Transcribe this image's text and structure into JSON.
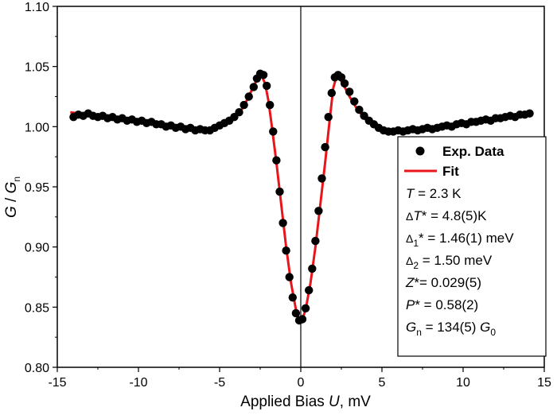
{
  "chart_data": {
    "type": "scatter",
    "xlabel": {
      "pre": "Applied Bias ",
      "var": "U",
      "post": ", mV"
    },
    "ylabel": {
      "g": "G",
      "slash": " / ",
      "gn": "G",
      "sub": "n"
    },
    "xlim": [
      -15,
      15
    ],
    "ylim": [
      0.8,
      1.1
    ],
    "xticks": [
      -15,
      -10,
      -5,
      0,
      5,
      10,
      15
    ],
    "xtick_labels": [
      "-15",
      "-10",
      "-5",
      "0",
      "5",
      "10",
      "15"
    ],
    "yticks": [
      0.8,
      0.85,
      0.9,
      0.95,
      1.0,
      1.05,
      1.1
    ],
    "ytick_labels": [
      "0.80",
      "0.85",
      "0.90",
      "0.95",
      "1.00",
      "1.05",
      "1.10"
    ],
    "grid": false,
    "zero_line_x": 0,
    "legend_placement": "right",
    "colors": {
      "data": "#000000",
      "fit": "#e8151a",
      "axis": "#000000"
    },
    "series": [
      {
        "name": "Exp. Data",
        "kind": "scatter",
        "points": [
          [
            -14.0,
            1.008
          ],
          [
            -13.7,
            1.01
          ],
          [
            -13.4,
            1.009
          ],
          [
            -13.1,
            1.011
          ],
          [
            -12.8,
            1.009
          ],
          [
            -12.5,
            1.008
          ],
          [
            -12.2,
            1.009
          ],
          [
            -11.9,
            1.007
          ],
          [
            -11.6,
            1.008
          ],
          [
            -11.3,
            1.006
          ],
          [
            -11.0,
            1.007
          ],
          [
            -10.7,
            1.005
          ],
          [
            -10.4,
            1.006
          ],
          [
            -10.1,
            1.004
          ],
          [
            -9.8,
            1.005
          ],
          [
            -9.5,
            1.003
          ],
          [
            -9.2,
            1.004
          ],
          [
            -8.9,
            1.002
          ],
          [
            -8.6,
            1.002
          ],
          [
            -8.3,
            1.0
          ],
          [
            -8.0,
            1.001
          ],
          [
            -7.7,
            0.999
          ],
          [
            -7.4,
            1.0
          ],
          [
            -7.1,
            0.998
          ],
          [
            -6.8,
            0.999
          ],
          [
            -6.5,
            0.997
          ],
          [
            -6.2,
            0.998
          ],
          [
            -5.9,
            0.997
          ],
          [
            -5.6,
            0.997
          ],
          [
            -5.3,
            0.999
          ],
          [
            -5.0,
            1.001
          ],
          [
            -4.7,
            1.003
          ],
          [
            -4.4,
            1.005
          ],
          [
            -4.1,
            1.008
          ],
          [
            -3.8,
            1.012
          ],
          [
            -3.5,
            1.018
          ],
          [
            -3.2,
            1.025
          ],
          [
            -2.9,
            1.033
          ],
          [
            -2.7,
            1.04
          ],
          [
            -2.5,
            1.044
          ],
          [
            -2.3,
            1.043
          ],
          [
            -2.1,
            1.034
          ],
          [
            -1.9,
            1.018
          ],
          [
            -1.7,
            0.996
          ],
          [
            -1.5,
            0.972
          ],
          [
            -1.3,
            0.946
          ],
          [
            -1.1,
            0.92
          ],
          [
            -0.9,
            0.897
          ],
          [
            -0.7,
            0.875
          ],
          [
            -0.5,
            0.858
          ],
          [
            -0.3,
            0.845
          ],
          [
            -0.1,
            0.839
          ],
          [
            0.1,
            0.84
          ],
          [
            0.3,
            0.849
          ],
          [
            0.5,
            0.864
          ],
          [
            0.7,
            0.882
          ],
          [
            0.9,
            0.905
          ],
          [
            1.1,
            0.93
          ],
          [
            1.3,
            0.957
          ],
          [
            1.5,
            0.983
          ],
          [
            1.7,
            1.008
          ],
          [
            1.9,
            1.028
          ],
          [
            2.1,
            1.041
          ],
          [
            2.3,
            1.043
          ],
          [
            2.5,
            1.041
          ],
          [
            2.7,
            1.036
          ],
          [
            3.0,
            1.029
          ],
          [
            3.3,
            1.021
          ],
          [
            3.6,
            1.014
          ],
          [
            3.9,
            1.009
          ],
          [
            4.2,
            1.005
          ],
          [
            4.5,
            1.002
          ],
          [
            4.8,
            0.999
          ],
          [
            5.1,
            0.997
          ],
          [
            5.4,
            0.996
          ],
          [
            5.7,
            0.996
          ],
          [
            6.0,
            0.997
          ],
          [
            6.3,
            0.996
          ],
          [
            6.6,
            0.997
          ],
          [
            6.9,
            0.998
          ],
          [
            7.2,
            0.997
          ],
          [
            7.5,
            0.998
          ],
          [
            7.8,
            0.999
          ],
          [
            8.1,
            0.998
          ],
          [
            8.4,
            0.999
          ],
          [
            8.7,
            1.0
          ],
          [
            9.0,
            1.001
          ],
          [
            9.3,
            1.0
          ],
          [
            9.6,
            1.002
          ],
          [
            9.9,
            1.003
          ],
          [
            10.2,
            1.002
          ],
          [
            10.5,
            1.004
          ],
          [
            10.8,
            1.004
          ],
          [
            11.1,
            1.005
          ],
          [
            11.4,
            1.006
          ],
          [
            11.7,
            1.005
          ],
          [
            12.0,
            1.007
          ],
          [
            12.3,
            1.007
          ],
          [
            12.6,
            1.008
          ],
          [
            12.9,
            1.009
          ],
          [
            13.2,
            1.008
          ],
          [
            13.5,
            1.01
          ],
          [
            13.8,
            1.01
          ],
          [
            14.1,
            1.011
          ]
        ]
      },
      {
        "name": "Fit",
        "kind": "line",
        "points": [
          [
            -14.2,
            1.012
          ],
          [
            -13.0,
            1.01
          ],
          [
            -12.0,
            1.008
          ],
          [
            -11.0,
            1.006
          ],
          [
            -10.0,
            1.004
          ],
          [
            -9.0,
            1.002
          ],
          [
            -8.0,
            1.0
          ],
          [
            -7.0,
            0.999
          ],
          [
            -6.0,
            0.998
          ],
          [
            -5.5,
            0.998
          ],
          [
            -5.0,
            1.0
          ],
          [
            -4.5,
            1.003
          ],
          [
            -4.0,
            1.008
          ],
          [
            -3.6,
            1.015
          ],
          [
            -3.2,
            1.025
          ],
          [
            -2.9,
            1.034
          ],
          [
            -2.6,
            1.041
          ],
          [
            -2.4,
            1.042
          ],
          [
            -2.2,
            1.036
          ],
          [
            -2.0,
            1.022
          ],
          [
            -1.8,
            1.002
          ],
          [
            -1.5,
            0.97
          ],
          [
            -1.2,
            0.935
          ],
          [
            -0.9,
            0.9
          ],
          [
            -0.6,
            0.87
          ],
          [
            -0.3,
            0.848
          ],
          [
            -0.1,
            0.84
          ],
          [
            0.0,
            0.839
          ],
          [
            0.1,
            0.84
          ],
          [
            0.3,
            0.848
          ],
          [
            0.6,
            0.87
          ],
          [
            0.9,
            0.9
          ],
          [
            1.2,
            0.935
          ],
          [
            1.5,
            0.97
          ],
          [
            1.8,
            1.008
          ],
          [
            2.0,
            1.032
          ],
          [
            2.2,
            1.042
          ],
          [
            2.4,
            1.04
          ],
          [
            2.7,
            1.033
          ],
          [
            3.0,
            1.025
          ],
          [
            3.5,
            1.014
          ],
          [
            4.0,
            1.006
          ],
          [
            4.5,
            1.001
          ],
          [
            5.0,
            0.998
          ],
          [
            5.5,
            0.997
          ],
          [
            6.0,
            0.997
          ],
          [
            7.0,
            0.998
          ],
          [
            8.0,
            0.999
          ],
          [
            9.0,
            1.001
          ],
          [
            10.0,
            1.003
          ],
          [
            11.0,
            1.005
          ],
          [
            12.0,
            1.007
          ],
          [
            13.0,
            1.009
          ],
          [
            14.0,
            1.011
          ],
          [
            14.2,
            1.012
          ]
        ]
      }
    ],
    "legend": {
      "entries": [
        {
          "label": "Exp. Data",
          "marker": "circle"
        },
        {
          "label": "Fit",
          "marker": "line"
        }
      ],
      "annotations": [
        {
          "pre": "",
          "var": "T",
          "sub": "",
          "post": " = 2.3 K"
        },
        {
          "pre": "Δ",
          "var": "T",
          "sub": "",
          "post": "* = 4.8(5)K"
        },
        {
          "pre": "Δ",
          "var": "",
          "sub": "1",
          "post": "* = 1.46(1) meV"
        },
        {
          "pre": "Δ",
          "var": "",
          "sub": "2",
          "post": " = 1.50 meV"
        },
        {
          "pre": "",
          "var": "Z",
          "sub": "",
          "post": "*= 0.029(5)"
        },
        {
          "pre": "",
          "var": "P",
          "sub": "",
          "post": "* = 0.58(2)"
        },
        {
          "pre": "",
          "var": "G",
          "sub": "n",
          "post": " = 134(5) ",
          "var2": "G",
          "sub2": "0"
        }
      ]
    }
  }
}
